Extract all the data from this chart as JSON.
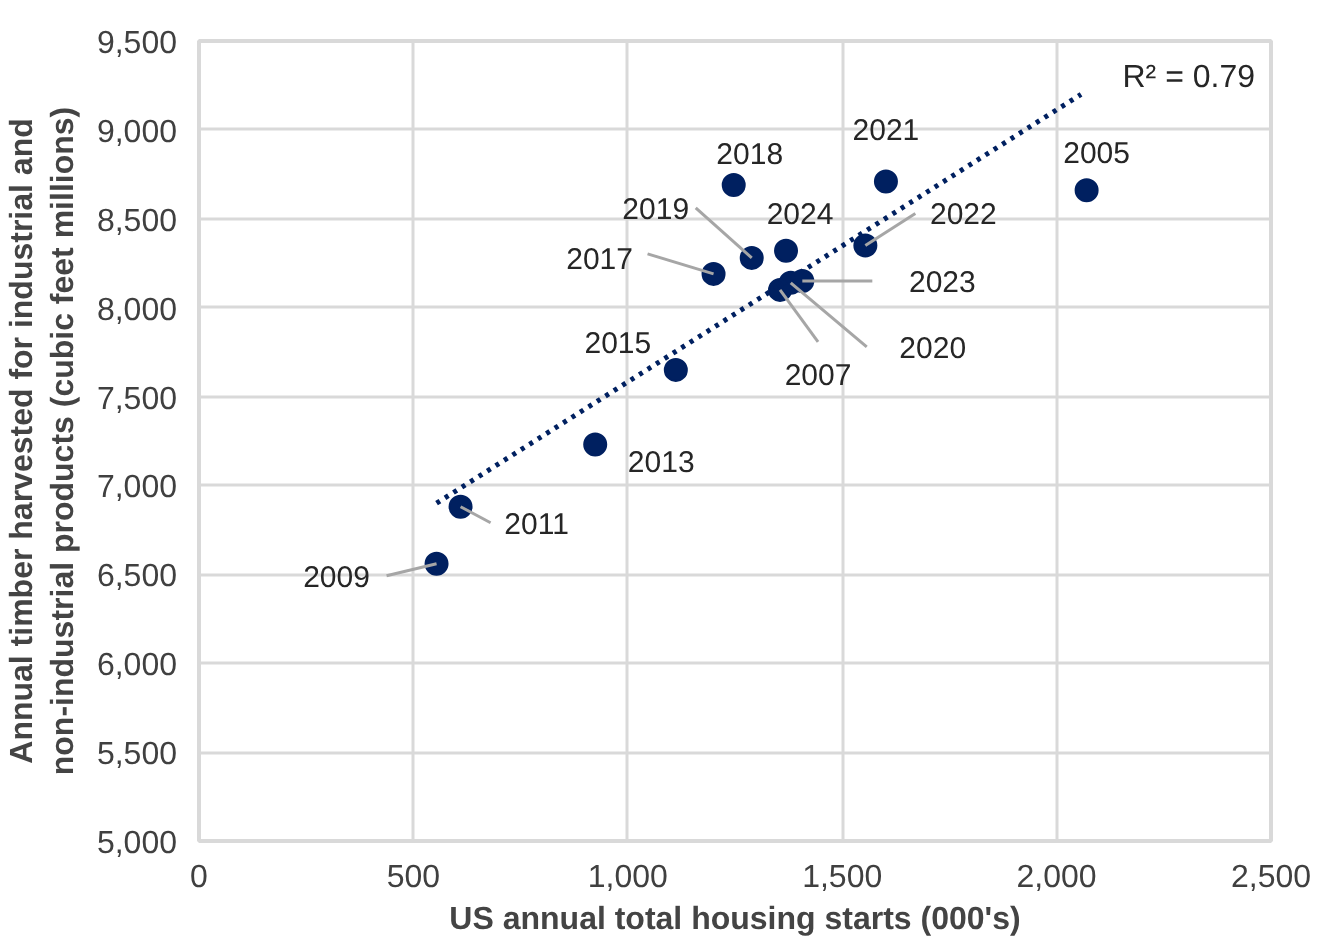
{
  "chart_data": {
    "type": "scatter",
    "xlabel": "US annual total housing starts (000's)",
    "ylabel": "Annual timber harvested for industrial and non-industrial products (cubic feet millions)",
    "series": [
      {
        "type": "scatter",
        "color": "#002060",
        "marker": "circle",
        "x": [
          2070,
          1355,
          554,
          610,
          924,
          1112,
          1200,
          1247,
          1289,
          1380,
          1602,
          1554,
          1407,
          1369
        ],
        "values": [
          8660,
          8100,
          6560,
          6880,
          7230,
          7650,
          8190,
          8690,
          8280,
          8140,
          8710,
          8350,
          8150,
          8320
        ]
      },
      {
        "type": "line",
        "color": "#002060",
        "line_style": "dotted",
        "marker": "none",
        "x": [
          554,
          2057
        ],
        "values": [
          6900,
          9200
        ]
      }
    ],
    "annotations": [
      {
        "text": "2005",
        "x": 2070,
        "y": 8660
      },
      {
        "text": "2007",
        "x": 1355,
        "y": 8100
      },
      {
        "text": "2009",
        "x": 554,
        "y": 6560
      },
      {
        "text": "2011",
        "x": 610,
        "y": 6880
      },
      {
        "text": "2013",
        "x": 924,
        "y": 7230
      },
      {
        "text": "2015",
        "x": 1112,
        "y": 7650
      },
      {
        "text": "2017",
        "x": 1200,
        "y": 8190
      },
      {
        "text": "2018",
        "x": 1247,
        "y": 8690
      },
      {
        "text": "2019",
        "x": 1289,
        "y": 8280
      },
      {
        "text": "2020",
        "x": 1380,
        "y": 8140
      },
      {
        "text": "2021",
        "x": 1602,
        "y": 8710
      },
      {
        "text": "2022",
        "x": 1554,
        "y": 8350
      },
      {
        "text": "2023",
        "x": 1407,
        "y": 8150
      },
      {
        "text": "2024",
        "x": 1369,
        "y": 8320
      },
      "R² = 0.79"
    ],
    "xlim": [
      0,
      2500
    ],
    "xticks": [
      0,
      {
        "value": 500,
        "label": "500"
      },
      {
        "value": 1000,
        "label": "1,000"
      },
      {
        "value": 1500,
        "label": "1,500"
      },
      {
        "value": 2000,
        "label": "2,000"
      },
      {
        "value": 2500,
        "label": "2,500"
      }
    ],
    "ylim": [
      5000,
      9500
    ],
    "yticks": [
      {
        "value": 5000,
        "label": "5,000"
      },
      {
        "value": 5500,
        "label": "5,500"
      },
      {
        "value": 6000,
        "label": "6,000"
      },
      {
        "value": 6500,
        "label": "6,500"
      },
      {
        "value": 7000,
        "label": "7,000"
      },
      {
        "value": 7500,
        "label": "7,500"
      },
      {
        "value": 8000,
        "label": "8,000"
      },
      {
        "value": 8500,
        "label": "8,500"
      },
      {
        "value": 9000,
        "label": "9,000"
      },
      {
        "value": 9500,
        "label": "9,500"
      }
    ],
    "grid": true
  }
}
